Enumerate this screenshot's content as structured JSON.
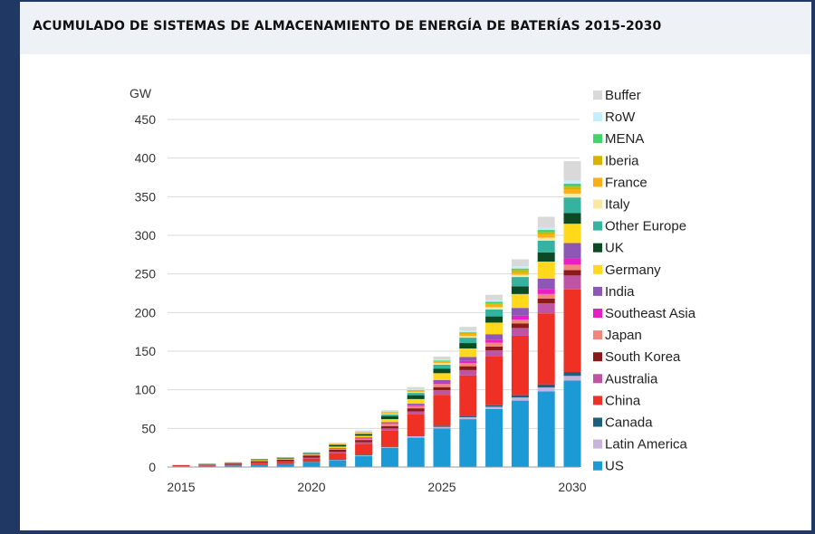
{
  "title": "ACUMULADO DE SISTEMAS DE ALMACENAMIENTO DE ENERGÍA DE BATERÍAS 2015-2030",
  "chart_data": {
    "type": "bar",
    "stacked": true,
    "title": "",
    "xlabel": "",
    "ylabel": "GW",
    "ylim": [
      0,
      450
    ],
    "yticks": [
      0,
      50,
      100,
      150,
      200,
      250,
      300,
      350,
      400,
      450
    ],
    "xtick_labels": [
      "2015",
      "2020",
      "2025",
      "2030"
    ],
    "grid": "horizontal",
    "legend_position": "right",
    "categories": [
      "2015",
      "2016",
      "2017",
      "2018",
      "2019",
      "2020",
      "2021",
      "2022",
      "2023",
      "2024",
      "2025",
      "2026",
      "2027",
      "2028",
      "2029",
      "2030"
    ],
    "series": [
      {
        "name": "US",
        "color": "#1b9ad6",
        "values": [
          1,
          1.5,
          2,
          3,
          4,
          6,
          9,
          14,
          25,
          38,
          50,
          62,
          75,
          86,
          98,
          112
        ]
      },
      {
        "name": "Latin America",
        "color": "#c9b3dc",
        "values": [
          0,
          0,
          0,
          0,
          0,
          0.5,
          0.5,
          1,
          1,
          2,
          2,
          2.5,
          3,
          4,
          5,
          6
        ]
      },
      {
        "name": "Canada",
        "color": "#1f5f7a",
        "values": [
          0,
          0,
          0,
          0,
          0,
          0.5,
          0.5,
          1,
          1,
          1,
          1.5,
          2,
          2,
          3,
          4,
          5
        ]
      },
      {
        "name": "China",
        "color": "#ee3124",
        "values": [
          1,
          1,
          1.5,
          2,
          3,
          4,
          8,
          14,
          20,
          27,
          40,
          52,
          63,
          77,
          92,
          107
        ]
      },
      {
        "name": "Australia",
        "color": "#c054a4",
        "values": [
          0,
          0,
          0,
          0.5,
          0.5,
          1,
          1.5,
          2,
          3,
          4,
          6,
          7,
          8,
          10,
          13,
          18
        ]
      },
      {
        "name": "South Korea",
        "color": "#8b1a1a",
        "values": [
          0.5,
          0.5,
          1,
          2,
          2,
          3,
          3,
          3,
          3,
          4,
          4,
          5,
          5,
          6,
          6,
          7
        ]
      },
      {
        "name": "Japan",
        "color": "#f2867a",
        "values": [
          0,
          0,
          0.5,
          0.5,
          0.5,
          1,
          1,
          2,
          3,
          3,
          4,
          4,
          5,
          5,
          6,
          7
        ]
      },
      {
        "name": "Southeast Asia",
        "color": "#e91ec4",
        "values": [
          0,
          0,
          0,
          0,
          0,
          0,
          0.5,
          0.5,
          1,
          1,
          2,
          3,
          4,
          5,
          6,
          8
        ]
      },
      {
        "name": "India",
        "color": "#8e56b5",
        "values": [
          0,
          0,
          0,
          0,
          0,
          0,
          0.5,
          1,
          1,
          2,
          3,
          5,
          7,
          10,
          14,
          20
        ]
      },
      {
        "name": "Germany",
        "color": "#ffd91a",
        "values": [
          0.5,
          0.5,
          0.5,
          1,
          1,
          1,
          2,
          2,
          4,
          6,
          9,
          11,
          15,
          18,
          22,
          25
        ]
      },
      {
        "name": "UK",
        "color": "#0b4a24",
        "values": [
          0,
          0.5,
          0.5,
          1,
          1,
          1,
          2,
          2,
          4,
          5,
          6,
          7,
          8,
          10,
          12,
          14
        ]
      },
      {
        "name": "Other Europe",
        "color": "#35b3a1",
        "values": [
          0,
          0,
          0,
          0,
          0.5,
          0.5,
          1,
          1,
          2,
          3,
          5,
          7,
          9,
          12,
          15,
          20
        ]
      },
      {
        "name": "Italy",
        "color": "#fbe9a3",
        "values": [
          0,
          0,
          0,
          0,
          0,
          0,
          0.5,
          0.5,
          1,
          1,
          2,
          2,
          3,
          3,
          4,
          5
        ]
      },
      {
        "name": "France",
        "color": "#f9b016",
        "values": [
          0,
          0,
          0,
          0,
          0,
          0,
          0.5,
          0.5,
          1,
          1,
          1.5,
          2,
          3,
          3,
          4,
          5
        ]
      },
      {
        "name": "Iberia",
        "color": "#d9b200",
        "values": [
          0,
          0,
          0,
          0,
          0,
          0,
          0,
          0.5,
          0.5,
          1,
          1,
          2,
          2,
          3,
          3,
          4
        ]
      },
      {
        "name": "MENA",
        "color": "#44d46e",
        "values": [
          0,
          0,
          0,
          0,
          0,
          0,
          0,
          0.5,
          0.5,
          0.5,
          1,
          1,
          2,
          2,
          3,
          4
        ]
      },
      {
        "name": "RoW",
        "color": "#c5eefb",
        "values": [
          0,
          0,
          0,
          0,
          0,
          0,
          0,
          0.5,
          0.5,
          1,
          1,
          2,
          2,
          3,
          3,
          4
        ]
      },
      {
        "name": "Buffer",
        "color": "#d9d9d9",
        "values": [
          0,
          0,
          0,
          0.5,
          0.5,
          1,
          1,
          1.5,
          2,
          3,
          4,
          5,
          7,
          9,
          14,
          25
        ]
      }
    ]
  }
}
